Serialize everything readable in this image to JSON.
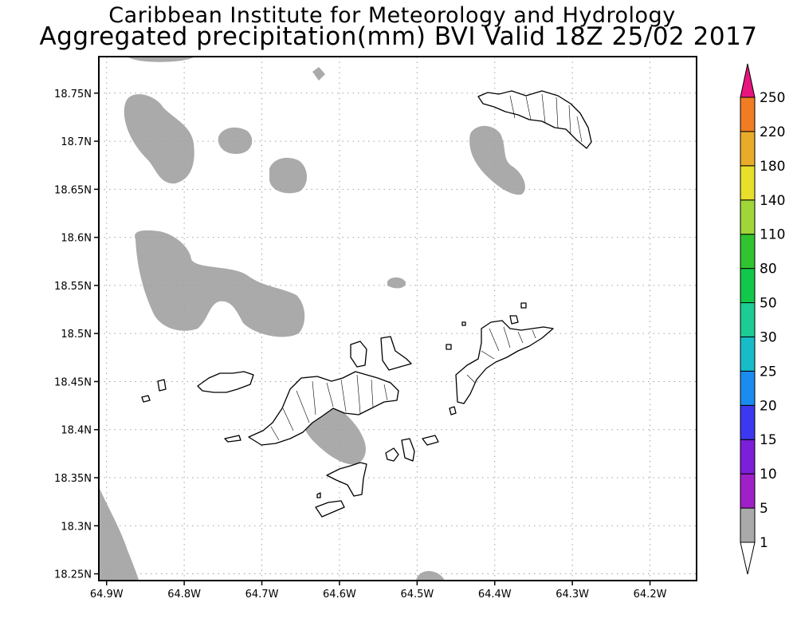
{
  "header": {
    "title_line1": "Caribbean Institute for Meteorology and Hydrology",
    "title_line2": "Aggregated precipitation(mm) BVI Valid 18Z 25/02 2017"
  },
  "axes": {
    "lon_ticks": [
      "64.9W",
      "64.8W",
      "64.7W",
      "64.6W",
      "64.5W",
      "64.4W",
      "64.3W",
      "64.2W"
    ],
    "lat_ticks": [
      "18.75N",
      "18.7N",
      "18.65N",
      "18.6N",
      "18.55N",
      "18.5N",
      "18.45N",
      "18.4N",
      "18.35N",
      "18.3N",
      "18.25N"
    ],
    "lon_values": [
      -64.9,
      -64.8,
      -64.7,
      -64.6,
      -64.5,
      -64.4,
      -64.3,
      -64.2
    ],
    "lat_values": [
      18.75,
      18.7,
      18.65,
      18.6,
      18.55,
      18.5,
      18.45,
      18.4,
      18.35,
      18.3,
      18.25
    ],
    "lon_range": [
      -64.91,
      -64.14
    ],
    "lat_range": [
      18.243,
      18.788
    ],
    "grid": true,
    "grid_style": "dotted"
  },
  "colorbar": {
    "levels": [
      "1",
      "5",
      "10",
      "15",
      "20",
      "25",
      "30",
      "50",
      "80",
      "110",
      "140",
      "180",
      "220",
      "250"
    ],
    "colors": [
      "#aaaaaa",
      "#a020c8",
      "#7b1fd8",
      "#3c38ef",
      "#1a8cf0",
      "#18bcc8",
      "#1ccc94",
      "#12c84a",
      "#30c430",
      "#a0d638",
      "#e8de2c",
      "#e8ac2a",
      "#f07d22",
      "#f24a46",
      "#e8147f"
    ],
    "placement": "right"
  },
  "legend_colors": {
    "land_fill": "#ffffff",
    "land_outline": "#000000",
    "precip_1_5mm": "#aaaaaa"
  }
}
